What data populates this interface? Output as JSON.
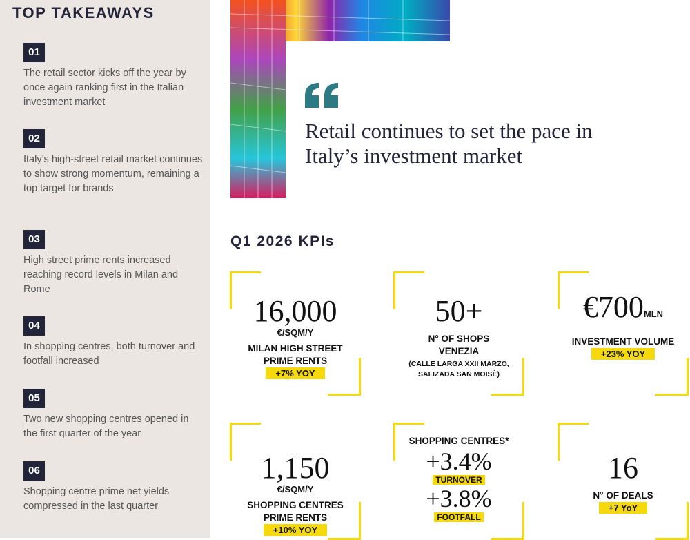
{
  "sidebar": {
    "title": "TOP TAKEAWAYS",
    "items": [
      {
        "number": "01",
        "text": "The retail sector kicks off the year by once again ranking first in the Italian investment market"
      },
      {
        "number": "02",
        "text": "Italy’s high-street retail market continues to show strong momentum, remaining a top target for brands"
      },
      {
        "number": "03",
        "text": "High street prime rents increased reaching record levels in Milan and Rome"
      },
      {
        "number": "04",
        "text": "In shopping centres, both turnover and footfall increased"
      },
      {
        "number": "05",
        "text": "Two new shopping centres opened in the first quarter of the year"
      },
      {
        "number": "06",
        "text": "Shopping centre prime net yields compressed in the last quarter"
      }
    ]
  },
  "quote": "Retail continues to set the pace in Italy’s investment market",
  "kpis": {
    "title": "Q1 2026 KPIs",
    "cards": [
      {
        "value": "16,000",
        "unit": "€/SQM/Y",
        "label": "MILAN HIGH STREET PRIME RENTS",
        "badge": "+7% YOY"
      },
      {
        "value": "50+",
        "label": "N° OF SHOPS VENEZIA",
        "note": "(CALLE LARGA XXII MARZO, SALIZADA SAN MOISÈ)"
      },
      {
        "value": "€700",
        "suffix": "MLN",
        "label": "INVESTMENT VOLUME",
        "badge": "+23% YOY"
      },
      {
        "value": "1,150",
        "unit": "€/SQM/Y",
        "label": "SHOPPING CENTRES PRIME RENTS",
        "badge": "+10% YOY"
      },
      {
        "header": "SHOPPING CENTRES*",
        "metrics": [
          {
            "value": "+3.4%",
            "badge": "TURNOVER"
          },
          {
            "value": "+3.8%",
            "badge": "FOOTFALL"
          }
        ]
      },
      {
        "value": "16",
        "label": "N° OF DEALS",
        "badge": "+7 YoY"
      }
    ]
  }
}
